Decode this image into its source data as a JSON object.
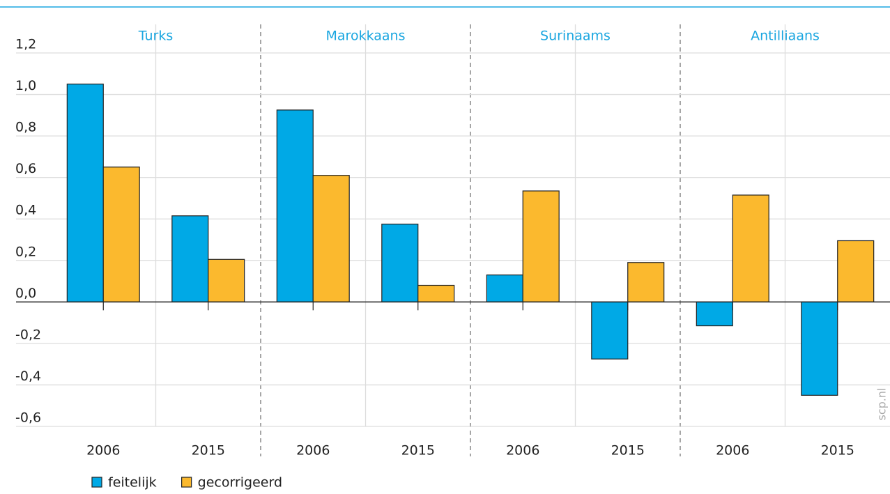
{
  "chart_data": {
    "type": "bar",
    "groups": [
      "Turks",
      "Marokkaans",
      "Surinaams",
      "Antilliaans"
    ],
    "categories": [
      "2006",
      "2015",
      "2006",
      "2015",
      "2006",
      "2015",
      "2006",
      "2015"
    ],
    "series": [
      {
        "name": "feitelijk",
        "color": "#00a9e6",
        "values": [
          1.05,
          0.415,
          0.925,
          0.375,
          0.13,
          -0.275,
          -0.115,
          -0.45
        ]
      },
      {
        "name": "gecorrigeerd",
        "color": "#fbb92e",
        "values": [
          0.65,
          0.205,
          0.61,
          0.08,
          0.535,
          0.19,
          0.515,
          0.295
        ]
      }
    ],
    "ylim": [
      -0.6,
      1.2
    ],
    "yticks": [
      {
        "value": -0.6,
        "label": "-0,6"
      },
      {
        "value": -0.4,
        "label": "-0,4"
      },
      {
        "value": -0.2,
        "label": "-0,2"
      },
      {
        "value": 0,
        "label": "0,0"
      },
      {
        "value": 0.2,
        "label": "0,2"
      },
      {
        "value": 0.4,
        "label": "0,4"
      },
      {
        "value": 0.6,
        "label": "0,6"
      },
      {
        "value": 0.8,
        "label": "0,8"
      },
      {
        "value": 1.0,
        "label": "1,0"
      },
      {
        "value": 1.2,
        "label": "1,2"
      }
    ],
    "grid": true,
    "legend": "bottom-left",
    "watermark": "scp.nl"
  }
}
